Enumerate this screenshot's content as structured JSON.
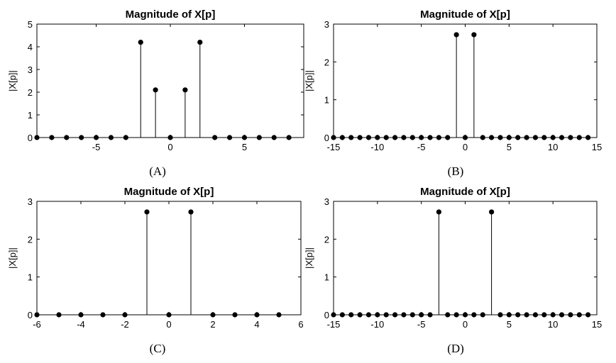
{
  "chart_data": [
    {
      "type": "stem",
      "title": "Magnitude of X[p]",
      "ylabel": "|X[p]|",
      "caption": "(A)",
      "xlim": [
        -9,
        9
      ],
      "ylim": [
        0,
        5
      ],
      "xticks": [
        -5,
        0,
        5
      ],
      "yticks": [
        0,
        1,
        2,
        3,
        4,
        5
      ],
      "x": [
        -9,
        -8,
        -7,
        -6,
        -5,
        -4,
        -3,
        -2,
        -1,
        0,
        1,
        2,
        3,
        4,
        5,
        6,
        7,
        8
      ],
      "y": [
        0,
        0,
        0,
        0,
        0,
        0,
        0,
        4.2,
        2.1,
        0,
        2.1,
        4.2,
        0,
        0,
        0,
        0,
        0,
        0
      ]
    },
    {
      "type": "stem",
      "title": "Magnitude of X[p]",
      "ylabel": "|X[p]|",
      "caption": "(B)",
      "xlim": [
        -15,
        15
      ],
      "ylim": [
        0,
        3
      ],
      "xticks": [
        -15,
        -10,
        -5,
        0,
        5,
        10,
        15
      ],
      "yticks": [
        0,
        1,
        2,
        3
      ],
      "x": [
        -15,
        -14,
        -13,
        -12,
        -11,
        -10,
        -9,
        -8,
        -7,
        -6,
        -5,
        -4,
        -3,
        -2,
        -1,
        0,
        1,
        2,
        3,
        4,
        5,
        6,
        7,
        8,
        9,
        10,
        11,
        12,
        13,
        14
      ],
      "y": [
        0,
        0,
        0,
        0,
        0,
        0,
        0,
        0,
        0,
        0,
        0,
        0,
        0,
        0,
        2.72,
        0,
        2.72,
        0,
        0,
        0,
        0,
        0,
        0,
        0,
        0,
        0,
        0,
        0,
        0,
        0
      ]
    },
    {
      "type": "stem",
      "title": "Magnitude of X[p]",
      "ylabel": "|X[p]|",
      "caption": "(C)",
      "xlim": [
        -6,
        6
      ],
      "ylim": [
        0,
        3
      ],
      "xticks": [
        -6,
        -4,
        -2,
        0,
        2,
        4,
        6
      ],
      "yticks": [
        0,
        1,
        2,
        3
      ],
      "x": [
        -6,
        -5,
        -4,
        -3,
        -2,
        -1,
        0,
        1,
        2,
        3,
        4,
        5
      ],
      "y": [
        0,
        0,
        0,
        0,
        0,
        2.72,
        0,
        2.72,
        0,
        0,
        0,
        0
      ]
    },
    {
      "type": "stem",
      "title": "Magnitude of X[p]",
      "ylabel": "|X[p]|",
      "caption": "(D)",
      "xlim": [
        -15,
        15
      ],
      "ylim": [
        0,
        3
      ],
      "xticks": [
        -15,
        -10,
        -5,
        0,
        5,
        10,
        15
      ],
      "yticks": [
        0,
        1,
        2,
        3
      ],
      "x": [
        -15,
        -14,
        -13,
        -12,
        -11,
        -10,
        -9,
        -8,
        -7,
        -6,
        -5,
        -4,
        -3,
        -2,
        -1,
        0,
        1,
        2,
        3,
        4,
        5,
        6,
        7,
        8,
        9,
        10,
        11,
        12,
        13,
        14
      ],
      "y": [
        0,
        0,
        0,
        0,
        0,
        0,
        0,
        0,
        0,
        0,
        0,
        0,
        2.72,
        0,
        0,
        0,
        0,
        0,
        2.72,
        0,
        0,
        0,
        0,
        0,
        0,
        0,
        0,
        0,
        0,
        0
      ]
    }
  ]
}
